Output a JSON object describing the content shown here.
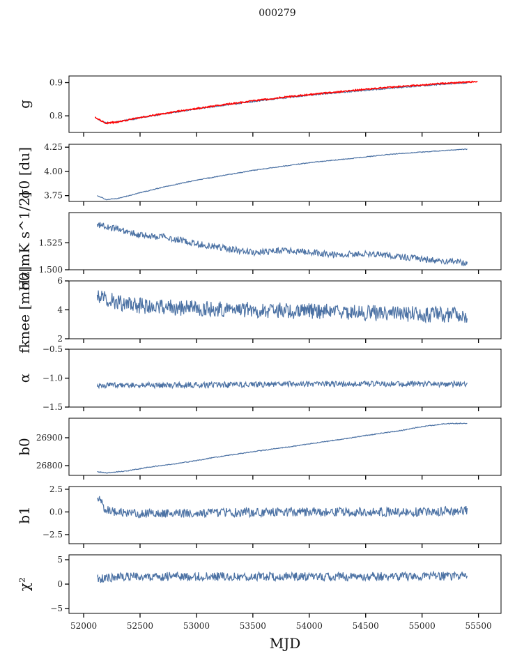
{
  "suptitle": "000279",
  "xlabel": "MJD",
  "xlim": [
    51870,
    55700
  ],
  "xticks": [
    52000,
    52500,
    53000,
    53500,
    54000,
    54500,
    55000,
    55500
  ],
  "colors": {
    "series": "#4c72a4",
    "model": "#ff0000",
    "axis": "#000000"
  },
  "chart_data": [
    {
      "type": "line",
      "ylabel": "g",
      "ylim": [
        0.75,
        0.92
      ],
      "yticks": [
        0.8,
        0.9
      ],
      "ytick_labels": [
        "0.8",
        "0.9"
      ],
      "series": [
        {
          "points": [
            [
              52120,
              0.79
            ],
            [
              52200,
              0.779
            ],
            [
              52300,
              0.782
            ],
            [
              52500,
              0.794
            ],
            [
              52750,
              0.808
            ],
            [
              53000,
              0.821
            ],
            [
              53250,
              0.832
            ],
            [
              53500,
              0.843
            ],
            [
              53750,
              0.853
            ],
            [
              54000,
              0.862
            ],
            [
              54250,
              0.87
            ],
            [
              54500,
              0.877
            ],
            [
              54750,
              0.884
            ],
            [
              55000,
              0.891
            ],
            [
              55250,
              0.897
            ],
            [
              55400,
              0.9
            ]
          ],
          "noise": 0.002,
          "color": "#4c72a4"
        },
        {
          "points": [
            [
              52100,
              0.795
            ],
            [
              52200,
              0.778
            ],
            [
              52300,
              0.781
            ],
            [
              52500,
              0.795
            ],
            [
              52750,
              0.809
            ],
            [
              53000,
              0.822
            ],
            [
              53250,
              0.834
            ],
            [
              53500,
              0.845
            ],
            [
              53750,
              0.855
            ],
            [
              54000,
              0.864
            ],
            [
              54250,
              0.872
            ],
            [
              54500,
              0.88
            ],
            [
              54750,
              0.887
            ],
            [
              55000,
              0.893
            ],
            [
              55250,
              0.899
            ],
            [
              55490,
              0.903
            ]
          ],
          "noise": 0.002,
          "color": "#ff0000"
        }
      ]
    },
    {
      "type": "line",
      "ylabel": "σ0 [du]",
      "ylim": [
        3.69,
        4.28
      ],
      "yticks": [
        3.75,
        4.0,
        4.25
      ],
      "ytick_labels": [
        "3.75",
        "4.00",
        "4.25"
      ],
      "series": [
        {
          "points": [
            [
              52120,
              3.75
            ],
            [
              52200,
              3.71
            ],
            [
              52300,
              3.72
            ],
            [
              52500,
              3.78
            ],
            [
              52750,
              3.85
            ],
            [
              53000,
              3.91
            ],
            [
              53250,
              3.96
            ],
            [
              53500,
              4.01
            ],
            [
              53750,
              4.05
            ],
            [
              54000,
              4.09
            ],
            [
              54250,
              4.12
            ],
            [
              54500,
              4.15
            ],
            [
              54750,
              4.18
            ],
            [
              55000,
              4.2
            ],
            [
              55250,
              4.22
            ],
            [
              55400,
              4.23
            ]
          ],
          "noise": 0.004,
          "color": "#4c72a4"
        }
      ]
    },
    {
      "type": "line",
      "ylabel": "σ0[mK s^1/2]",
      "ylim": [
        1.5,
        1.553
      ],
      "yticks": [
        1.5,
        1.525
      ],
      "ytick_labels": [
        "1.500",
        "1.525"
      ],
      "series": [
        {
          "points": [
            [
              52120,
              1.542
            ],
            [
              52300,
              1.538
            ],
            [
              52500,
              1.532
            ],
            [
              52750,
              1.53
            ],
            [
              53000,
              1.524
            ],
            [
              53250,
              1.52
            ],
            [
              53500,
              1.516
            ],
            [
              53750,
              1.518
            ],
            [
              54000,
              1.516
            ],
            [
              54250,
              1.514
            ],
            [
              54500,
              1.515
            ],
            [
              54750,
              1.513
            ],
            [
              55000,
              1.51
            ],
            [
              55200,
              1.508
            ],
            [
              55400,
              1.506
            ]
          ],
          "noise": 0.003,
          "color": "#4c72a4"
        }
      ]
    },
    {
      "type": "line",
      "ylabel": "fknee [mHz]",
      "ylim": [
        2,
        6
      ],
      "yticks": [
        2,
        4,
        6
      ],
      "ytick_labels": [
        "2",
        "4",
        "6"
      ],
      "series": [
        {
          "points": [
            [
              52120,
              5.0
            ],
            [
              52300,
              4.5
            ],
            [
              52600,
              4.2
            ],
            [
              53000,
              4.1
            ],
            [
              53500,
              4.0
            ],
            [
              54000,
              3.9
            ],
            [
              54500,
              3.8
            ],
            [
              55000,
              3.7
            ],
            [
              55400,
              3.6
            ]
          ],
          "noise": 0.55,
          "color": "#4c72a4"
        }
      ]
    },
    {
      "type": "line",
      "ylabel": "α",
      "ylim": [
        -1.5,
        -0.5
      ],
      "yticks": [
        -1.5,
        -1.0,
        -0.5
      ],
      "ytick_labels": [
        "−1.5",
        "−1.0",
        "−0.5"
      ],
      "series": [
        {
          "points": [
            [
              52120,
              -1.12
            ],
            [
              53000,
              -1.12
            ],
            [
              54000,
              -1.1
            ],
            [
              55000,
              -1.1
            ],
            [
              55400,
              -1.1
            ]
          ],
          "noise": 0.05,
          "color": "#4c72a4"
        }
      ]
    },
    {
      "type": "line",
      "ylabel": "b0",
      "ylim": [
        26765,
        26970
      ],
      "yticks": [
        26800,
        26900
      ],
      "ytick_labels": [
        "26800",
        "26900"
      ],
      "series": [
        {
          "points": [
            [
              52120,
              26778
            ],
            [
              52200,
              26774
            ],
            [
              52400,
              26782
            ],
            [
              52600,
              26796
            ],
            [
              52800,
              26806
            ],
            [
              53000,
              26818
            ],
            [
              53200,
              26832
            ],
            [
              53500,
              26850
            ],
            [
              53800,
              26866
            ],
            [
              54000,
              26878
            ],
            [
              54300,
              26895
            ],
            [
              54500,
              26908
            ],
            [
              54800,
              26925
            ],
            [
              55000,
              26940
            ],
            [
              55200,
              26950
            ],
            [
              55400,
              26952
            ]
          ],
          "noise": 1.5,
          "color": "#4c72a4"
        }
      ]
    },
    {
      "type": "line",
      "ylabel": "b1",
      "ylim": [
        -3.5,
        2.8
      ],
      "yticks": [
        -2.5,
        0.0,
        2.5
      ],
      "ytick_labels": [
        "−2.5",
        "0.0",
        "2.5"
      ],
      "series": [
        {
          "points": [
            [
              52120,
              1.8
            ],
            [
              52200,
              0.2
            ],
            [
              52400,
              -0.2
            ],
            [
              53000,
              -0.1
            ],
            [
              54000,
              0.0
            ],
            [
              55000,
              0.0
            ],
            [
              55400,
              0.2
            ]
          ],
          "noise": 0.5,
          "color": "#4c72a4"
        }
      ]
    },
    {
      "type": "line",
      "ylabel": "χ²",
      "ylim": [
        -6,
        6
      ],
      "yticks": [
        -5,
        0,
        5
      ],
      "ytick_labels": [
        "−5",
        "0",
        "5"
      ],
      "series": [
        {
          "points": [
            [
              52120,
              1.0
            ],
            [
              52300,
              1.5
            ],
            [
              53000,
              1.6
            ],
            [
              54000,
              1.5
            ],
            [
              55000,
              1.6
            ],
            [
              55400,
              1.7
            ]
          ],
          "noise": 0.9,
          "color": "#4c72a4"
        }
      ]
    }
  ]
}
